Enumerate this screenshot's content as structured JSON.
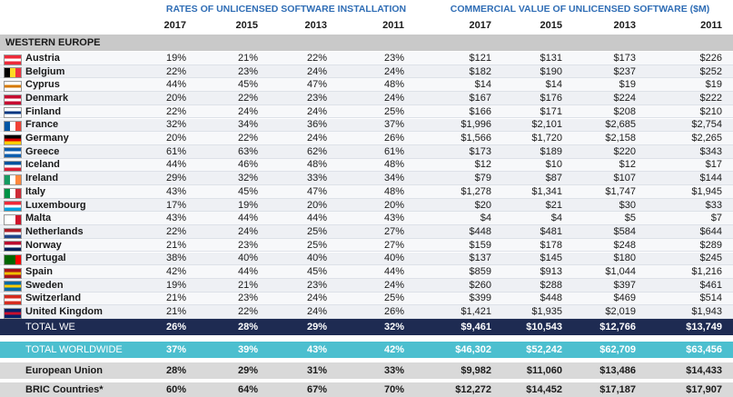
{
  "header": {
    "group_1": "RATES OF UNLICENSED SOFTWARE INSTALLATION",
    "group_2": "COMMERCIAL VALUE OF UNLICENSED SOFTWARE ($M)",
    "years_1": [
      "2017",
      "2015",
      "2013",
      "2011"
    ],
    "years_2": [
      "2017",
      "2015",
      "2013",
      "2011"
    ]
  },
  "section": "WESTERN EUROPE",
  "table": {
    "rows": [
      [
        "Austria",
        "19%",
        "21%",
        "22%",
        "23%",
        "$121",
        "$131",
        "$173",
        "$226"
      ],
      [
        "Belgium",
        "22%",
        "23%",
        "24%",
        "24%",
        "$182",
        "$190",
        "$237",
        "$252"
      ],
      [
        "Cyprus",
        "44%",
        "45%",
        "47%",
        "48%",
        "$14",
        "$14",
        "$19",
        "$19"
      ],
      [
        "Denmark",
        "20%",
        "22%",
        "23%",
        "24%",
        "$167",
        "$176",
        "$224",
        "$222"
      ],
      [
        "Finland",
        "22%",
        "24%",
        "24%",
        "25%",
        "$166",
        "$171",
        "$208",
        "$210"
      ],
      [
        "France",
        "32%",
        "34%",
        "36%",
        "37%",
        "$1,996",
        "$2,101",
        "$2,685",
        "$2,754"
      ],
      [
        "Germany",
        "20%",
        "22%",
        "24%",
        "26%",
        "$1,566",
        "$1,720",
        "$2,158",
        "$2,265"
      ],
      [
        "Greece",
        "61%",
        "63%",
        "62%",
        "61%",
        "$173",
        "$189",
        "$220",
        "$343"
      ],
      [
        "Iceland",
        "44%",
        "46%",
        "48%",
        "48%",
        "$12",
        "$10",
        "$12",
        "$17"
      ],
      [
        "Ireland",
        "29%",
        "32%",
        "33%",
        "34%",
        "$79",
        "$87",
        "$107",
        "$144"
      ],
      [
        "Italy",
        "43%",
        "45%",
        "47%",
        "48%",
        "$1,278",
        "$1,341",
        "$1,747",
        "$1,945"
      ],
      [
        "Luxembourg",
        "17%",
        "19%",
        "20%",
        "20%",
        "$20",
        "$21",
        "$30",
        "$33"
      ],
      [
        "Malta",
        "43%",
        "44%",
        "44%",
        "43%",
        "$4",
        "$4",
        "$5",
        "$7"
      ],
      [
        "Netherlands",
        "22%",
        "24%",
        "25%",
        "27%",
        "$448",
        "$481",
        "$584",
        "$644"
      ],
      [
        "Norway",
        "21%",
        "23%",
        "25%",
        "27%",
        "$159",
        "$178",
        "$248",
        "$289"
      ],
      [
        "Portugal",
        "38%",
        "40%",
        "40%",
        "40%",
        "$137",
        "$145",
        "$180",
        "$245"
      ],
      [
        "Spain",
        "42%",
        "44%",
        "45%",
        "44%",
        "$859",
        "$913",
        "$1,044",
        "$1,216"
      ],
      [
        "Sweden",
        "19%",
        "21%",
        "23%",
        "24%",
        "$260",
        "$288",
        "$397",
        "$461"
      ],
      [
        "Switzerland",
        "21%",
        "23%",
        "24%",
        "25%",
        "$399",
        "$448",
        "$469",
        "$514"
      ],
      [
        "United Kingdom",
        "21%",
        "22%",
        "24%",
        "26%",
        "$1,421",
        "$1,935",
        "$2,019",
        "$1,943"
      ]
    ]
  },
  "summary_rows": [
    [
      "TOTAL WE",
      "26%",
      "28%",
      "29%",
      "32%",
      "$9,461",
      "$10,543",
      "$12,766",
      "$13,749"
    ],
    [
      "TOTAL WORLDWIDE",
      "37%",
      "39%",
      "43%",
      "42%",
      "$46,302",
      "$52,242",
      "$62,709",
      "$63,456"
    ],
    [
      "European Union",
      "28%",
      "29%",
      "31%",
      "33%",
      "$9,982",
      "$11,060",
      "$13,486",
      "$14,433"
    ],
    [
      "BRIC Countries*",
      "60%",
      "64%",
      "67%",
      "70%",
      "$12,272",
      "$14,452",
      "$17,187",
      "$17,907"
    ]
  ]
}
